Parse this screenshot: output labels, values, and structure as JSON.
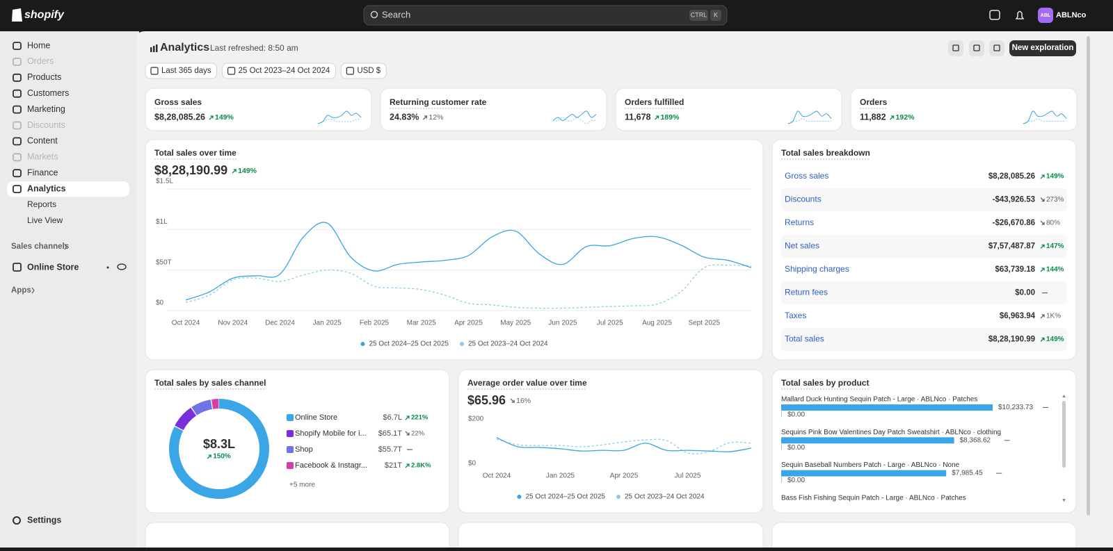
{
  "topbar": {
    "logo": "shopify",
    "search": "Search",
    "shortcut": [
      "CTRL",
      "K"
    ],
    "avatar": "ABL",
    "store": "ABLNco"
  },
  "sidebar": {
    "items": [
      {
        "label": "Home",
        "state": "normal"
      },
      {
        "label": "Orders",
        "state": "disabled"
      },
      {
        "label": "Products",
        "state": "normal"
      },
      {
        "label": "Customers",
        "state": "normal"
      },
      {
        "label": "Marketing",
        "state": "normal"
      },
      {
        "label": "Discounts",
        "state": "disabled"
      },
      {
        "label": "Content",
        "state": "normal"
      },
      {
        "label": "Markets",
        "state": "disabled"
      },
      {
        "label": "Finance",
        "state": "normal"
      },
      {
        "label": "Analytics",
        "state": "active"
      }
    ],
    "sub_items": [
      "Reports",
      "Live View"
    ],
    "sales_channels": "Sales channels",
    "online_store": "Online Store",
    "apps": "Apps",
    "settings": "Settings"
  },
  "header": {
    "title": "Analytics",
    "refreshed": "Last refreshed: 8:50 am",
    "button": "New exploration"
  },
  "filters": [
    "Last 365 days",
    "25 Oct 2023–24 Oct 2024",
    "USD $"
  ],
  "kpis": [
    {
      "label": "Gross sales",
      "value": "$8,28,085.26",
      "change": "149%",
      "direction": "up",
      "positive": true,
      "sparkline": [
        2,
        3,
        6,
        5,
        5,
        6,
        8,
        6,
        7,
        5
      ],
      "sparkline_previous": [
        2,
        3,
        4,
        4,
        3,
        3,
        3,
        3,
        4,
        4
      ]
    },
    {
      "label": "Returning customer rate",
      "value": "24.83%",
      "change": "12%",
      "direction": "up",
      "positive": false,
      "sparkline": [
        4,
        5,
        4,
        5,
        6,
        5,
        6,
        7,
        5,
        6
      ],
      "sparkline_previous": [
        4,
        4,
        5,
        4,
        4,
        5,
        4,
        3,
        4,
        4
      ]
    },
    {
      "label": "Orders fulfilled",
      "value": "11,678",
      "change": "189%",
      "direction": "up",
      "positive": true,
      "sparkline": [
        2,
        3,
        7,
        5,
        5,
        6,
        7,
        5,
        6,
        4
      ],
      "sparkline_previous": [
        2,
        3,
        3,
        4,
        3,
        3,
        3,
        3,
        3,
        3
      ]
    },
    {
      "label": "Orders",
      "value": "11,882",
      "change": "192%",
      "direction": "up",
      "positive": true,
      "sparkline": [
        2,
        3,
        7,
        5,
        5,
        6,
        7,
        5,
        6,
        4
      ],
      "sparkline_previous": [
        2,
        3,
        3,
        4,
        3,
        3,
        3,
        3,
        3,
        3
      ]
    }
  ],
  "total_sales_chart": {
    "title": "Total sales over time",
    "total": "$8,28,190.99",
    "change": "149%",
    "direction": "up",
    "positive": true,
    "categories": [
      "Oct 2024",
      null,
      "Nov 2024",
      null,
      "Dec 2024",
      null,
      "Jan 2025",
      null,
      "Feb 2025",
      null,
      "Mar 2025",
      null,
      "Apr 2025",
      null,
      "May 2025",
      null,
      "Jun 2025",
      null,
      "Jul 2025",
      null,
      "Aug 2025",
      null,
      "Sept 2025",
      null,
      null
    ],
    "ylim": [
      0,
      150000
    ],
    "yticks": [
      {
        "value": 0,
        "label": "$0"
      },
      {
        "value": 50000,
        "label": "$50T"
      },
      {
        "value": 100000,
        "label": "$1L"
      },
      {
        "value": 150000,
        "label": "$1.5L"
      }
    ],
    "grid": true,
    "series": [
      {
        "name": "25 Oct 2024–25 Oct 2025",
        "color": "#3aa3de",
        "dashed": false,
        "values": [
          13000,
          23000,
          40000,
          43000,
          45000,
          91000,
          108000,
          66000,
          49000,
          57000,
          60000,
          62000,
          68000,
          91000,
          98000,
          70000,
          57000,
          79000,
          80000,
          89000,
          91000,
          81000,
          66000,
          62000,
          53000
        ]
      },
      {
        "name": "25 Oct 2023–24 Oct 2024",
        "color": "#8ccbec",
        "dashed": true,
        "values": [
          10000,
          19000,
          38000,
          40000,
          36000,
          44000,
          50000,
          46000,
          30000,
          28000,
          26000,
          19000,
          9000,
          7000,
          4000,
          3000,
          3000,
          4000,
          5000,
          6000,
          8000,
          23000,
          53000,
          56000,
          55000
        ]
      }
    ]
  },
  "breakdown": {
    "title": "Total sales breakdown",
    "rows": [
      {
        "label": "Gross sales",
        "value": "$8,28,085.26",
        "change": "149%",
        "direction": "up",
        "positive": true
      },
      {
        "label": "Discounts",
        "value": "-$43,926.53",
        "change": "273%",
        "direction": "down",
        "positive": false
      },
      {
        "label": "Returns",
        "value": "-$26,670.86",
        "change": "80%",
        "direction": "down",
        "positive": false
      },
      {
        "label": "Net sales",
        "value": "$7,57,487.87",
        "change": "147%",
        "direction": "up",
        "positive": true
      },
      {
        "label": "Shipping charges",
        "value": "$63,739.18",
        "change": "144%",
        "direction": "up",
        "positive": true
      },
      {
        "label": "Return fees",
        "value": "$0.00",
        "change": null,
        "direction": "none",
        "positive": false
      },
      {
        "label": "Taxes",
        "value": "$6,963.94",
        "change": "1K%",
        "direction": "up",
        "positive": false
      },
      {
        "label": "Total sales",
        "value": "$8,28,190.99",
        "change": "149%",
        "direction": "up",
        "positive": true
      }
    ]
  },
  "channels": {
    "title": "Total sales by sales channel",
    "total": "$8.3L",
    "change": "150%",
    "direction": "up",
    "positive": true,
    "more": "+5 more",
    "items": [
      {
        "name": "Online Store",
        "value": 670000,
        "value_label": "$6.7L",
        "color": "#3aa6e8",
        "change": "221%",
        "direction": "up",
        "positive": true
      },
      {
        "name": "Shopify Mobile for i...",
        "value": 65100,
        "value_label": "$65.1T",
        "color": "#7b2fdc",
        "change": "22%",
        "direction": "down",
        "positive": false
      },
      {
        "name": "Shop",
        "value": 55700,
        "value_label": "$55.7T",
        "color": "#6f74e4",
        "change": null,
        "direction": "none",
        "positive": false
      },
      {
        "name": "Facebook & Instagr...",
        "value": 21000,
        "value_label": "$21T",
        "color": "#d43fa6",
        "change": "2.8K%",
        "direction": "up",
        "positive": true
      }
    ]
  },
  "aov_chart": {
    "title": "Average order value over time",
    "total": "$65.96",
    "change": "16%",
    "direction": "down",
    "positive": false,
    "categories": [
      "Oct 2024",
      null,
      null,
      "Jan 2025",
      null,
      null,
      "Apr 2025",
      null,
      null,
      "Jul 2025",
      null,
      null,
      null
    ],
    "ylim": [
      0,
      200
    ],
    "yticks": [
      {
        "value": 0,
        "label": "$0"
      },
      {
        "value": 200,
        "label": "$200"
      }
    ],
    "series": [
      {
        "name": "25 Oct 2024–25 Oct 2025",
        "color": "#3aa3de",
        "dashed": false,
        "values": [
          116,
          75,
          72,
          66,
          56,
          59,
          59,
          91,
          59,
          59,
          56,
          53,
          69
        ]
      },
      {
        "name": "25 Oct 2023–24 Oct 2024",
        "color": "#8ccbec",
        "dashed": true,
        "values": [
          109,
          84,
          81,
          81,
          75,
          84,
          97,
          106,
          103,
          47,
          53,
          94,
          91
        ]
      }
    ]
  },
  "products": {
    "title": "Total sales by product",
    "items": [
      {
        "name": "Mallard Duck Hunting Sequin Patch - Large · ABLNco · Patches",
        "value": 10233.73,
        "value_label": "$10,233.73",
        "previous": 0,
        "previous_label": "$0.00"
      },
      {
        "name": "Sequins Pink Bow Valentines Day Patch Sweatshirt · ABLNco · clothing",
        "value": 8368.62,
        "value_label": "$8,368.62",
        "previous": 0,
        "previous_label": "$0.00"
      },
      {
        "name": "Sequin Baseball Numbers Patch - Large · ABLNco · None",
        "value": 7985.45,
        "value_label": "$7,985.45",
        "previous": 0,
        "previous_label": "$0.00"
      },
      {
        "name": "Bass Fish Fishing Sequin Patch - Large · ABLNco · Patches",
        "value": null,
        "value_label": null,
        "previous": null,
        "previous_label": null
      }
    ],
    "color": "#3aa6e8"
  }
}
